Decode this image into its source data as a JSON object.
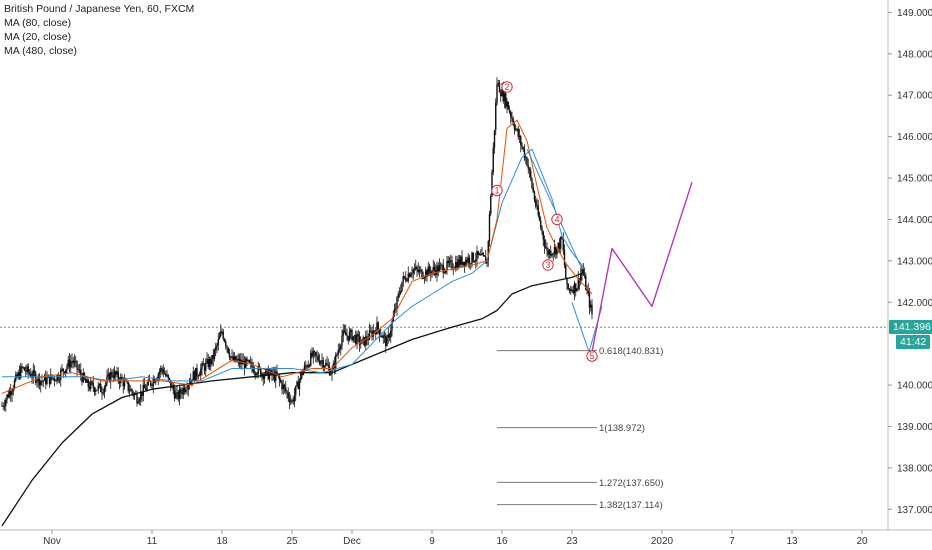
{
  "legend": {
    "symbol": "British Pound / Japanese Yen, 60, FXCM",
    "ma80": "MA (80, close)",
    "ma20": "MA (20, close)",
    "ma480": "MA (480, close)"
  },
  "colors": {
    "candle": "#111111",
    "ma20": "#e65100",
    "ma80": "#2f8fd6",
    "ma480": "#111111",
    "projection": "#b03cb0",
    "wave_label": "#d32f2f",
    "price_line": "#4caf50",
    "price_tag": "#26a69a",
    "countdown_tag": "#26a69a"
  },
  "price_tags": {
    "current": "141.396",
    "countdown": "41:42"
  },
  "chart_data": {
    "type": "line",
    "title": "British Pound / Japanese Yen, 60, FXCM",
    "ylim": [
      136.5,
      149.3
    ],
    "y_ticks": [
      "149.000",
      "148.000",
      "147.000",
      "146.000",
      "145.000",
      "144.000",
      "143.000",
      "142.000",
      "140.000",
      "139.000",
      "138.000",
      "137.000"
    ],
    "x_tick_labels": [
      "Nov",
      "11",
      "18",
      "25",
      "Dec",
      "9",
      "16",
      "23",
      "2020",
      "7",
      "13",
      "20"
    ],
    "x_tick_days": [
      0,
      10,
      17,
      24,
      30,
      38,
      45,
      52,
      61,
      68,
      74,
      81
    ],
    "xlim_days": [
      -5.2,
      83.6
    ],
    "current_price": 141.396,
    "price_path": [
      [
        -5,
        139.5
      ],
      [
        -3,
        140.4
      ],
      [
        -1,
        140.1
      ],
      [
        0.5,
        140.2
      ],
      [
        2,
        140.6
      ],
      [
        3.5,
        140.0
      ],
      [
        5,
        139.9
      ],
      [
        6,
        140.3
      ],
      [
        7,
        140.1
      ],
      [
        8.5,
        139.7
      ],
      [
        10,
        140.1
      ],
      [
        11,
        140.4
      ],
      [
        12.5,
        139.7
      ],
      [
        14,
        140.2
      ],
      [
        16,
        140.6
      ],
      [
        17,
        141.3
      ],
      [
        18,
        140.6
      ],
      [
        19.5,
        140.5
      ],
      [
        21,
        140.3
      ],
      [
        22.5,
        140.2
      ],
      [
        24,
        139.6
      ],
      [
        25,
        140.3
      ],
      [
        26,
        140.7
      ],
      [
        27,
        140.6
      ],
      [
        28,
        140.3
      ],
      [
        29,
        141.2
      ],
      [
        30,
        141.2
      ],
      [
        31,
        141.0
      ],
      [
        32.5,
        141.4
      ],
      [
        33.5,
        141.0
      ],
      [
        35,
        142.5
      ],
      [
        36,
        142.8
      ],
      [
        37,
        142.7
      ],
      [
        38.5,
        142.8
      ],
      [
        40,
        142.9
      ],
      [
        41,
        143.0
      ],
      [
        42.5,
        143.1
      ],
      [
        43.5,
        143.0
      ],
      [
        44.5,
        147.3
      ],
      [
        45.5,
        146.8
      ],
      [
        46.5,
        146.1
      ],
      [
        47.5,
        145.4
      ],
      [
        48.5,
        144.2
      ],
      [
        49.5,
        143.2
      ],
      [
        50.5,
        143.3
      ],
      [
        51,
        143.5
      ],
      [
        51.5,
        142.3
      ],
      [
        52.5,
        142.4
      ],
      [
        53,
        142.8
      ],
      [
        54,
        141.7
      ]
    ],
    "ma20_path": [
      [
        -5,
        139.8
      ],
      [
        -1,
        140.2
      ],
      [
        2,
        140.3
      ],
      [
        5,
        140.1
      ],
      [
        8,
        140.1
      ],
      [
        11,
        140.1
      ],
      [
        14,
        140.0
      ],
      [
        16,
        140.3
      ],
      [
        18,
        140.6
      ],
      [
        20,
        140.5
      ],
      [
        23,
        140.2
      ],
      [
        26,
        140.4
      ],
      [
        28,
        140.4
      ],
      [
        30,
        140.9
      ],
      [
        32,
        141.2
      ],
      [
        34,
        141.6
      ],
      [
        36,
        142.5
      ],
      [
        38,
        142.7
      ],
      [
        40,
        142.8
      ],
      [
        42,
        142.9
      ],
      [
        43.5,
        143.0
      ],
      [
        44.5,
        144.0
      ],
      [
        45.5,
        146.2
      ],
      [
        46.5,
        146.4
      ],
      [
        47.5,
        145.9
      ],
      [
        48.5,
        144.8
      ],
      [
        49.5,
        143.8
      ],
      [
        50.5,
        143.3
      ],
      [
        51.5,
        142.9
      ],
      [
        52.5,
        142.6
      ],
      [
        54,
        142.2
      ]
    ],
    "ma80_path": [
      [
        -5,
        140.2
      ],
      [
        -1,
        140.2
      ],
      [
        3,
        140.2
      ],
      [
        6,
        140.1
      ],
      [
        9,
        140.2
      ],
      [
        12,
        140.1
      ],
      [
        15,
        140.1
      ],
      [
        18,
        140.4
      ],
      [
        21,
        140.4
      ],
      [
        24,
        140.4
      ],
      [
        27,
        140.3
      ],
      [
        30,
        140.5
      ],
      [
        32,
        141.0
      ],
      [
        34,
        141.5
      ],
      [
        36,
        141.9
      ],
      [
        38,
        142.2
      ],
      [
        40,
        142.5
      ],
      [
        42,
        142.7
      ],
      [
        43.5,
        143.0
      ],
      [
        45,
        144.4
      ],
      [
        47,
        145.5
      ],
      [
        48,
        145.7
      ],
      [
        49,
        145.1
      ],
      [
        50,
        144.5
      ],
      [
        51,
        143.6
      ],
      [
        52,
        143.2
      ],
      [
        53,
        142.9
      ]
    ],
    "ma480_path": [
      [
        -5,
        136.6
      ],
      [
        -2,
        137.7
      ],
      [
        1,
        138.6
      ],
      [
        4,
        139.3
      ],
      [
        7,
        139.7
      ],
      [
        10,
        139.9
      ],
      [
        13,
        140.0
      ],
      [
        16,
        140.1
      ],
      [
        20,
        140.2
      ],
      [
        24,
        140.3
      ],
      [
        28,
        140.3
      ],
      [
        32,
        140.7
      ],
      [
        36,
        141.1
      ],
      [
        40,
        141.4
      ],
      [
        43,
        141.6
      ],
      [
        44.5,
        141.8
      ],
      [
        46,
        142.2
      ],
      [
        48,
        142.4
      ],
      [
        50,
        142.5
      ],
      [
        52,
        142.6
      ],
      [
        53,
        142.7
      ]
    ],
    "wave_channel": [
      [
        [
          47.5,
          145.7
        ],
        [
          53,
          142.8
        ]
      ],
      [
        [
          52,
          142.0
        ],
        [
          53.7,
          140.8
        ]
      ],
      [
        [
          53.7,
          140.8
        ],
        [
          55,
          141.9
        ]
      ]
    ],
    "projection_path": [
      [
        54,
        140.8
      ],
      [
        56,
        143.3
      ],
      [
        60,
        141.9
      ],
      [
        64,
        144.9
      ]
    ],
    "elliott_waves": [
      {
        "label": "1",
        "x": 44.5,
        "y": 144.7
      },
      {
        "label": "2",
        "x": 45.5,
        "y": 147.2
      },
      {
        "label": "3",
        "x": 49.6,
        "y": 142.9
      },
      {
        "label": "4",
        "x": 50.5,
        "y": 144.0
      },
      {
        "label": "5",
        "x": 54.0,
        "y": 140.7
      }
    ],
    "fib_levels": [
      {
        "label": "0.618(140.831)",
        "value": 140.831
      },
      {
        "label": "1(138.972)",
        "value": 138.972
      },
      {
        "label": "1.272(137.650)",
        "value": 137.65
      },
      {
        "label": "1.382(137.114)",
        "value": 137.114
      }
    ],
    "fib_x_range": [
      44.5,
      54.5
    ]
  }
}
